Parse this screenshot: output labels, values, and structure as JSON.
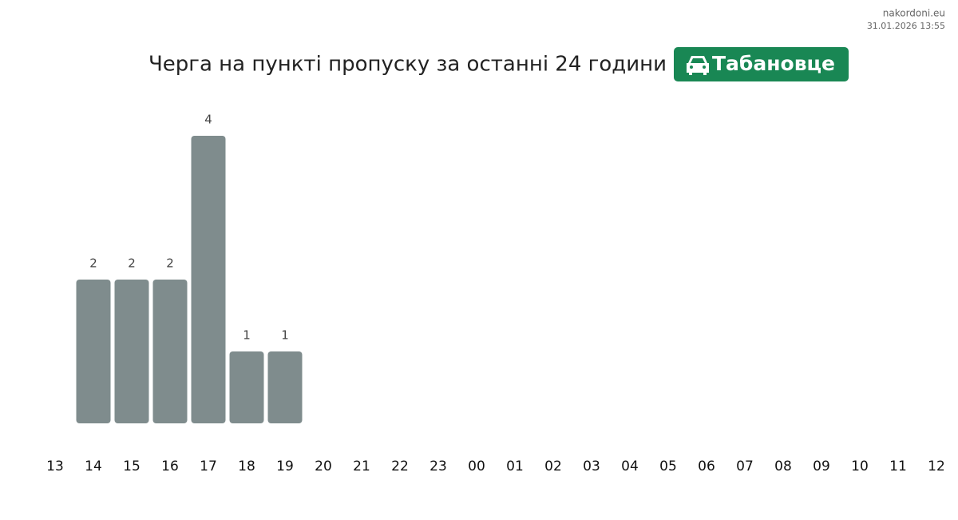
{
  "source": "nakordoni.eu",
  "timestamp": "31.01.2026 13:55",
  "chart_data": {
    "type": "bar",
    "title": "Черга на пункті пропуску за останні 24 години",
    "badge": "Табановце",
    "categories": [
      "13",
      "14",
      "15",
      "16",
      "17",
      "18",
      "19",
      "20",
      "21",
      "22",
      "23",
      "00",
      "01",
      "02",
      "03",
      "04",
      "05",
      "06",
      "07",
      "08",
      "09",
      "10",
      "11",
      "12"
    ],
    "values": [
      null,
      2,
      2,
      2,
      4,
      1,
      1,
      null,
      null,
      null,
      null,
      null,
      null,
      null,
      null,
      null,
      null,
      null,
      null,
      null,
      null,
      null,
      null,
      null
    ],
    "color": "#7f8c8d",
    "ylim": [
      0,
      4
    ]
  }
}
